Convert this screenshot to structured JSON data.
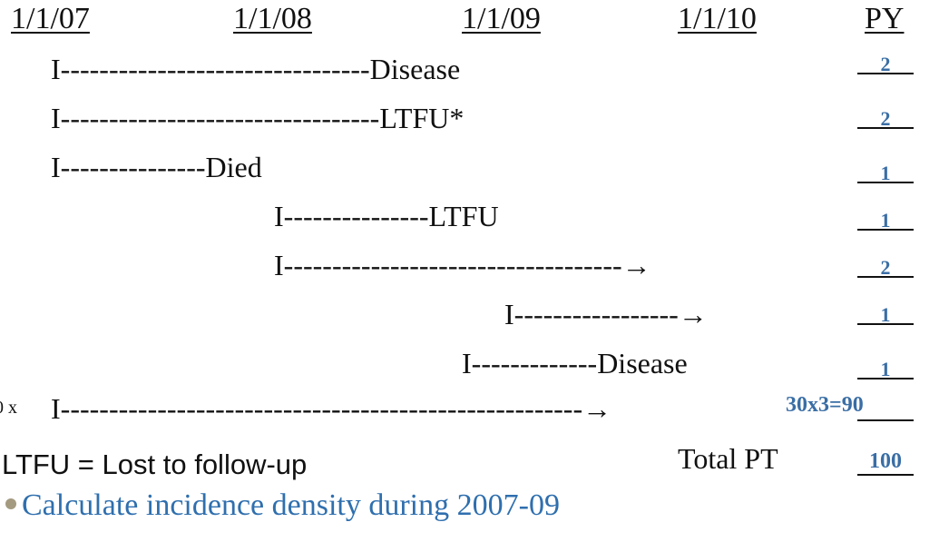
{
  "header": {
    "dates": [
      "1/1/07",
      "1/1/08",
      "1/1/09",
      "1/1/10"
    ],
    "py_label": "PY"
  },
  "rows": [
    {
      "line": "I--------------------------------Disease",
      "py": "2"
    },
    {
      "line": "I---------------------------------LTFU*",
      "py": "2"
    },
    {
      "line": "I---------------Died",
      "py": "1"
    },
    {
      "line": "I---------------LTFU",
      "py": "1"
    },
    {
      "line": "I-----------------------------------→",
      "py": "2"
    },
    {
      "line": "I-----------------→",
      "py": "1"
    },
    {
      "line": "I-------------Disease",
      "py": "1"
    },
    {
      "line": "I------------------------------------------------------→",
      "py": "90",
      "calc": "30x3="
    }
  ],
  "edge_text": "0 x",
  "legend": "LTFU = Lost to follow-up",
  "total": {
    "label": "Total PT",
    "value": "100"
  },
  "bullet": "Calculate incidence density during 2007-09",
  "colors": {
    "accent": "#3a6ea5",
    "bullet_text": "#2f6fae",
    "bullet_dot": "#a49a80"
  }
}
